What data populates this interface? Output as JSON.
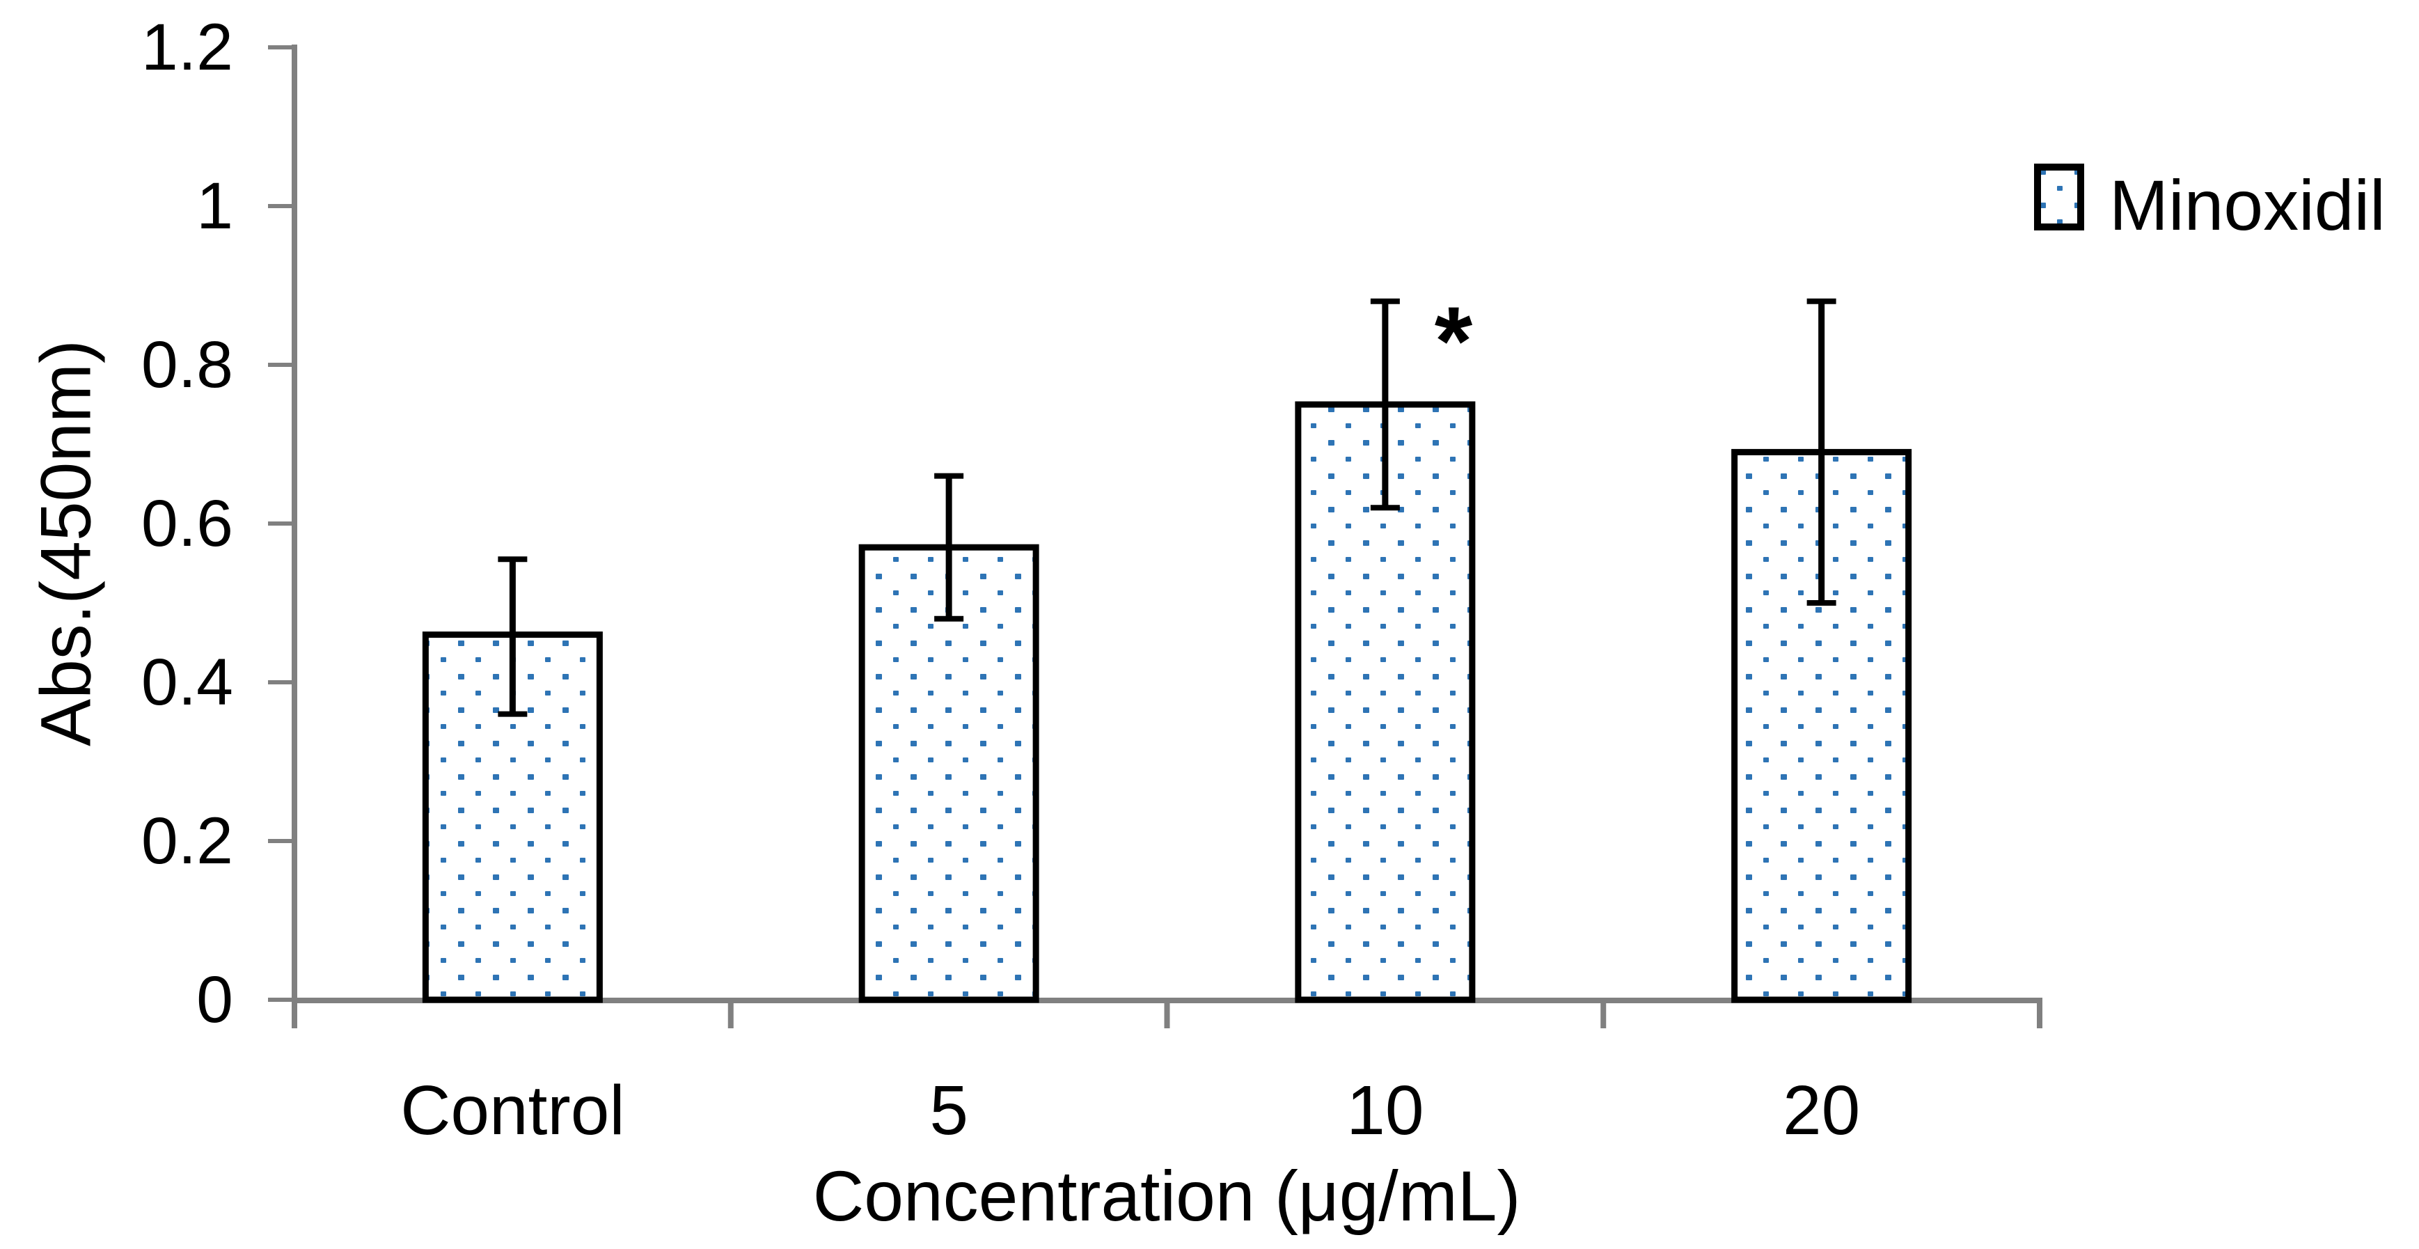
{
  "figure": {
    "y_axis": {
      "title": "Abs.(450nm)",
      "tick_labels": [
        "1.2",
        "1",
        "0.8",
        "0.6",
        "0.4",
        "0.2",
        "0"
      ]
    },
    "x_axis": {
      "title": "Concentration (μg/mL)"
    },
    "legend": {
      "label": "Minoxidil",
      "marker": "dotted-square"
    },
    "significance_marker": "*",
    "colors": {
      "dot_blue": "#2E74B5",
      "axis_gray": "#808080",
      "bar_border": "#000000",
      "text": "#000000"
    }
  },
  "chart_data": {
    "type": "bar",
    "title": "",
    "xlabel": "Concentration (μg/mL)",
    "ylabel": "Abs.(450nm)",
    "categories": [
      "Control",
      "5",
      "10",
      "20"
    ],
    "series": [
      {
        "name": "Minoxidil",
        "values": [
          0.46,
          0.57,
          0.75,
          0.69
        ],
        "error_plus": [
          0.095,
          0.09,
          0.13,
          0.19
        ],
        "error_minus": [
          0.1,
          0.09,
          0.13,
          0.19
        ]
      }
    ],
    "ylim": [
      0,
      1.2
    ],
    "ytick_interval": 0.2,
    "grid": false,
    "legend_position": "top-right",
    "bar_fill": "white with blue dot pattern",
    "bar_edge_color": "#000000",
    "annotations": [
      {
        "text": "*",
        "category": "10",
        "position": "above-right-of-bar-top"
      }
    ]
  }
}
